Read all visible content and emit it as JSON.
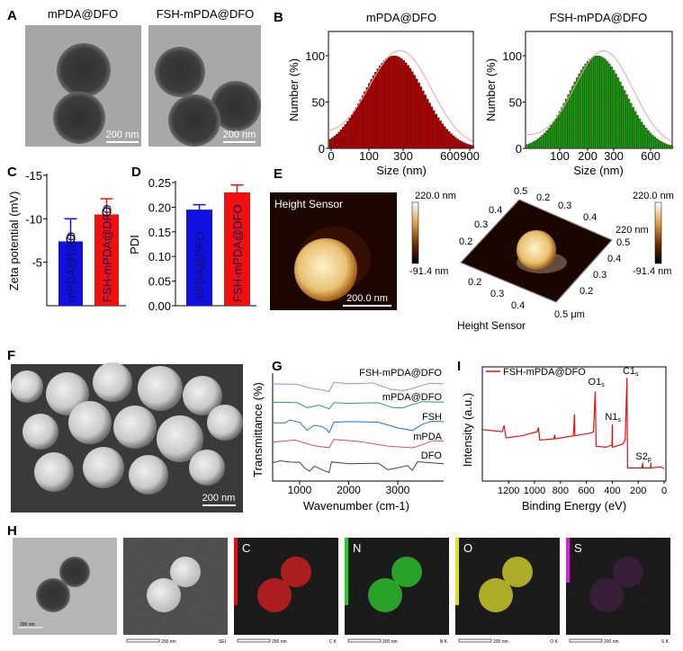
{
  "panels": {
    "A": {
      "label": "A",
      "titles": [
        "mPDA@DFO",
        "FSH-mPDA@DFO"
      ],
      "scale": "200 nm"
    },
    "B": {
      "label": "B"
    },
    "C": {
      "label": "C"
    },
    "D": {
      "label": "D"
    },
    "E": {
      "label": "E",
      "image_title": "Height Sensor",
      "scale": "200.0 nm",
      "colorbar_max": "220.0 nm",
      "colorbar_min": "-91.4 nm",
      "surface_title": "Height Sensor",
      "z_label": "220 nm",
      "unit_label": "0.5 μm",
      "axis_top": [
        "0.5",
        "0.2",
        "0.3",
        "0.4"
      ],
      "axis_left": [
        "0.4",
        "0.3",
        "0.2"
      ],
      "axis_right": [
        "0.5",
        "0.4",
        "0.3",
        "0.2"
      ],
      "axis_bottom": [
        "0.2",
        "0.3",
        "0.4"
      ]
    },
    "F": {
      "label": "F",
      "scale": "200 nm"
    },
    "G": {
      "label": "G"
    },
    "I": {
      "label": "I"
    },
    "H": {
      "label": "H",
      "scale": "200 nm",
      "maps": [
        {
          "letter": "",
          "tag": "SEI",
          "color": "#d8d8d8"
        },
        {
          "letter": "C",
          "tag": "C K",
          "color": "#e01010"
        },
        {
          "letter": "N",
          "tag": "N K",
          "color": "#20d020"
        },
        {
          "letter": "O",
          "tag": "O K",
          "color": "#e0e020"
        },
        {
          "letter": "S",
          "tag": "S K",
          "color": "#e020e0"
        }
      ]
    }
  },
  "chart_data": [
    {
      "id": "B1",
      "type": "bar",
      "title": "mPDA@DFO",
      "xlabel": "Size (nm)",
      "ylabel": "Number (%)",
      "xticks": [
        "0",
        "100",
        "300",
        "600",
        "900"
      ],
      "yticks": [
        "0",
        "50",
        "100"
      ],
      "peak": {
        "size_nm": 250,
        "value": 100
      },
      "color": "#b00000",
      "fit_color": "#f0a0a8"
    },
    {
      "id": "B2",
      "type": "bar",
      "title": "FSH-mPDA@DFO",
      "xlabel": "Size (nm)",
      "ylabel": "Number (%)",
      "xticks": [
        "100",
        "200",
        "300",
        "600"
      ],
      "yticks": [
        "0",
        "50",
        "100"
      ],
      "peak": {
        "size_nm": 230,
        "value": 100
      },
      "color": "#10a010",
      "fit_color": "#f0a0a8"
    },
    {
      "id": "C",
      "type": "bar",
      "ylabel": "Zeta potential (mV)",
      "yticks": [
        "-15",
        "-10",
        "-5"
      ],
      "ylim": [
        0,
        -15
      ],
      "categories": [
        "mPDA@DFO",
        "FSH-mPDA@DFO"
      ],
      "values": [
        -7.4,
        -10.5
      ],
      "errors": [
        2.6,
        1.8
      ],
      "points": [
        -7.7,
        -10.8
      ],
      "colors": [
        "#1010e0",
        "#f01010"
      ]
    },
    {
      "id": "D",
      "type": "bar",
      "ylabel": "PDI",
      "yticks": [
        "0.00",
        "0.05",
        "0.10",
        "0.15",
        "0.20",
        "0.25"
      ],
      "ylim": [
        0,
        0.25
      ],
      "categories": [
        "mPDA@DFO",
        "FSH-mPDA@DFO"
      ],
      "values": [
        0.195,
        0.23
      ],
      "errors": [
        0.01,
        0.015
      ],
      "colors": [
        "#1010e0",
        "#f01010"
      ]
    },
    {
      "id": "G",
      "type": "line",
      "xlabel": "Wavenumber (cm-1)",
      "ylabel": "Transmittance (%)",
      "xticks": [
        1000,
        2000,
        3000
      ],
      "xlim": [
        450,
        3936
      ],
      "series": [
        {
          "name": "FSH-mPDA@DFO",
          "color": "#b080e0",
          "points": [
            [
              450,
              90
            ],
            [
              700,
              89
            ],
            [
              950,
              90
            ],
            [
              1200,
              87
            ],
            [
              1450,
              84
            ],
            [
              1600,
              82
            ],
            [
              1700,
              91
            ],
            [
              2000,
              91
            ],
            [
              2500,
              90
            ],
            [
              2850,
              86
            ],
            [
              3100,
              84
            ],
            [
              3300,
              85
            ],
            [
              3500,
              88
            ],
            [
              3650,
              91
            ],
            [
              3936,
              91
            ]
          ]
        },
        {
          "name": "mPDA@DFO",
          "color": "#30a050",
          "points": [
            [
              450,
              73
            ],
            [
              700,
              72
            ],
            [
              950,
              73
            ],
            [
              1150,
              69
            ],
            [
              1400,
              70
            ],
            [
              1600,
              66
            ],
            [
              1700,
              72
            ],
            [
              2000,
              73
            ],
            [
              2600,
              72
            ],
            [
              2900,
              69
            ],
            [
              3100,
              68
            ],
            [
              3300,
              70
            ],
            [
              3500,
              73
            ],
            [
              3936,
              74
            ]
          ]
        },
        {
          "name": "FSH",
          "color": "#2070d0",
          "points": [
            [
              450,
              54
            ],
            [
              700,
              53
            ],
            [
              800,
              56
            ],
            [
              1000,
              55
            ],
            [
              1150,
              48
            ],
            [
              1300,
              52
            ],
            [
              1450,
              50
            ],
            [
              1550,
              47
            ],
            [
              1600,
              44
            ],
            [
              1700,
              54
            ],
            [
              2000,
              56
            ],
            [
              2600,
              54
            ],
            [
              3000,
              50
            ],
            [
              3300,
              46
            ],
            [
              3500,
              52
            ],
            [
              3700,
              56
            ],
            [
              3936,
              56
            ]
          ]
        },
        {
          "name": "mPDA",
          "color": "#e05050",
          "points": [
            [
              450,
              36
            ],
            [
              900,
              38
            ],
            [
              1300,
              33
            ],
            [
              1600,
              30
            ],
            [
              1700,
              38
            ],
            [
              2200,
              37
            ],
            [
              2800,
              33
            ],
            [
              3300,
              30
            ],
            [
              3500,
              33
            ],
            [
              3700,
              38
            ],
            [
              3936,
              38
            ]
          ]
        },
        {
          "name": "DFO",
          "color": "#404040",
          "points": [
            [
              450,
              17
            ],
            [
              600,
              18
            ],
            [
              800,
              17
            ],
            [
              1000,
              18
            ],
            [
              1100,
              13
            ],
            [
              1200,
              10
            ],
            [
              1300,
              14
            ],
            [
              1500,
              9
            ],
            [
              1600,
              7
            ],
            [
              1650,
              17
            ],
            [
              2000,
              17
            ],
            [
              2600,
              16
            ],
            [
              2800,
              11
            ],
            [
              3000,
              13
            ],
            [
              3200,
              14
            ],
            [
              3300,
              9
            ],
            [
              3400,
              17
            ],
            [
              3936,
              17
            ]
          ]
        }
      ]
    },
    {
      "id": "I",
      "type": "line",
      "xlabel": "Binding Energy (eV)",
      "ylabel": "Intensity (a.u.)",
      "xticks": [
        1200,
        1000,
        800,
        600,
        400,
        200,
        0
      ],
      "xlim": [
        1400,
        0
      ],
      "legend": "top-left",
      "series": [
        {
          "name": "FSH-mPDA@DFO",
          "color": "#e01010",
          "points": [
            [
              1400,
              48
            ],
            [
              1250,
              46
            ],
            [
              1235,
              52
            ],
            [
              1220,
              40
            ],
            [
              1100,
              42
            ],
            [
              980,
              46
            ],
            [
              970,
              50
            ],
            [
              960,
              38
            ],
            [
              850,
              39
            ],
            [
              845,
              43
            ],
            [
              840,
              39
            ],
            [
              700,
              42
            ],
            [
              692,
              63
            ],
            [
              688,
              42
            ],
            [
              560,
              45
            ],
            [
              545,
              46
            ],
            [
              531,
              85
            ],
            [
              525,
              32
            ],
            [
              450,
              31
            ],
            [
              402,
              33
            ],
            [
              400,
              53
            ],
            [
              398,
              31
            ],
            [
              320,
              34
            ],
            [
              300,
              38
            ],
            [
              287,
              98
            ],
            [
              282,
              11
            ],
            [
              170,
              11
            ],
            [
              165,
              16
            ],
            [
              163,
              11
            ],
            [
              104,
              11
            ],
            [
              102,
              16
            ],
            [
              100,
              11
            ],
            [
              20,
              12
            ],
            [
              0,
              10
            ]
          ]
        }
      ],
      "annotations": [
        {
          "text": "O1",
          "sub": "s",
          "be": 531
        },
        {
          "text": "C1",
          "sub": "s",
          "be": 285
        },
        {
          "text": "N1",
          "sub": "s",
          "be": 400
        },
        {
          "text": "S2",
          "sub": "p",
          "be": 150
        }
      ]
    }
  ]
}
